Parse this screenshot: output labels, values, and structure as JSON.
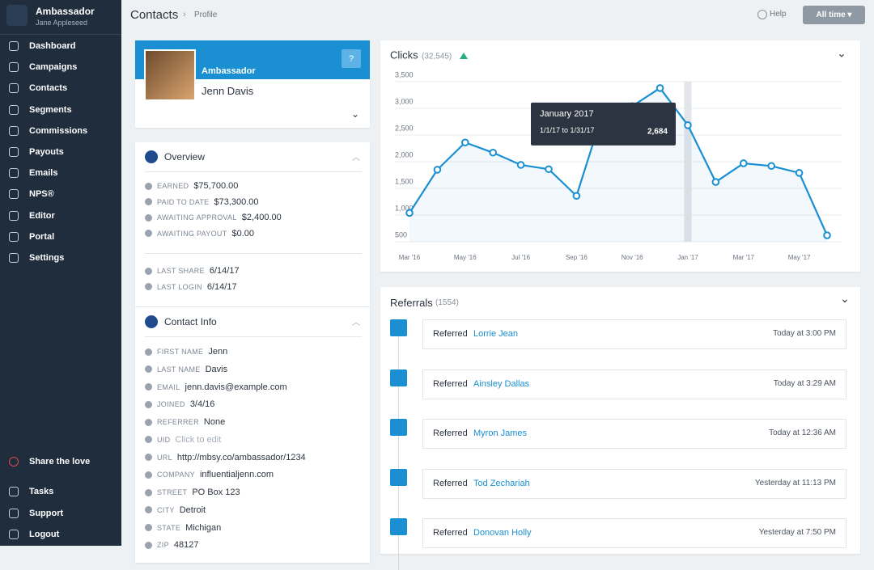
{
  "sidebar": {
    "brand": {
      "title": "Ambassador",
      "subtitle": "Jane Appleseed"
    },
    "nav": [
      "Dashboard",
      "Campaigns",
      "Contacts",
      "Segments",
      "Commissions",
      "Payouts",
      "Emails",
      "NPS®",
      "Editor",
      "Portal",
      "Settings"
    ],
    "bottom": [
      "Share the love",
      "Tasks",
      "Support",
      "Logout"
    ]
  },
  "header": {
    "breadcrumb": [
      "Contacts",
      "Profile"
    ],
    "help": "Help",
    "range": "All time"
  },
  "profile": {
    "badge": "Ambassador",
    "name": "Jenn Davis",
    "help_button": "?"
  },
  "overview": {
    "title": "Overview",
    "stats": [
      {
        "label": "EARNED",
        "value": "$75,700.00"
      },
      {
        "label": "PAID TO DATE",
        "value": "$73,300.00"
      },
      {
        "label": "AWAITING APPROVAL",
        "value": "$2,400.00"
      },
      {
        "label": "AWAITING PAYOUT",
        "value": "$0.00"
      }
    ],
    "activity": [
      {
        "label": "LAST SHARE",
        "value": "6/14/17"
      },
      {
        "label": "LAST LOGIN",
        "value": "6/14/17"
      }
    ]
  },
  "contact": {
    "title": "Contact Info",
    "fields": [
      {
        "label": "FIRST NAME",
        "value": "Jenn"
      },
      {
        "label": "LAST NAME",
        "value": "Davis"
      },
      {
        "label": "EMAIL",
        "value": "jenn.davis@example.com"
      },
      {
        "label": "JOINED",
        "value": "3/4/16"
      },
      {
        "label": "REFERRER",
        "value": "None"
      },
      {
        "label": "UID",
        "value": "Click to edit"
      },
      {
        "label": "URL",
        "value": "http://mbsy.co/ambassador/1234"
      },
      {
        "label": "COMPANY",
        "value": "influentialjenn.com"
      },
      {
        "label": "STREET",
        "value": "PO Box 123"
      },
      {
        "label": "CITY",
        "value": "Detroit"
      },
      {
        "label": "STATE",
        "value": "Michigan"
      },
      {
        "label": "ZIP",
        "value": "48127"
      }
    ]
  },
  "chart_data": {
    "type": "line",
    "title": "Clicks",
    "count": "(32,545)",
    "categories": [
      "Mar '16",
      null,
      "May '16",
      null,
      "Jul '16",
      null,
      "Sep '16",
      null,
      "Nov '16",
      null,
      "Jan '17",
      null,
      "Mar '17",
      null,
      "May '17",
      null
    ],
    "values": [
      1040,
      1850,
      2360,
      2170,
      1940,
      1860,
      1360,
      3010,
      3040,
      3380,
      2684,
      1620,
      1970,
      1920,
      1790,
      620
    ],
    "value_labels": [
      null,
      null,
      null,
      null,
      null,
      null,
      null,
      null,
      null,
      null,
      "2,684",
      null,
      null,
      null,
      null,
      null
    ],
    "tooltip": {
      "title": "January 2017",
      "subtitle": "1/1/17 to 1/31/17"
    },
    "color": "#1a8fd1",
    "ylim": [
      500,
      3500
    ],
    "yticks": [
      500,
      {
        "value": 1000,
        "label": "1,000"
      },
      {
        "value": 1500,
        "label": "1,500"
      },
      {
        "value": 2000,
        "label": "2,000"
      },
      {
        "value": 2500,
        "label": "2,500"
      },
      {
        "value": 3000,
        "label": "3,000"
      },
      {
        "value": 3500,
        "label": "3,500"
      }
    ],
    "grid": true
  },
  "referrals": {
    "title": "Referrals",
    "count": "(1554)",
    "items": [
      {
        "action": "Referred",
        "name": "Lorrie Jean",
        "time": "Today at 3:00 PM"
      },
      {
        "action": "Referred",
        "name": "Ainsley Dallas",
        "time": "Today at 3:29 AM"
      },
      {
        "action": "Referred",
        "name": "Myron James",
        "time": "Today at 12:36 AM"
      },
      {
        "action": "Referred",
        "name": "Tod Zechariah",
        "time": "Yesterday at 11:13 PM"
      },
      {
        "action": "Referred",
        "name": "Donovan Holly",
        "time": "Yesterday at 7:50 PM"
      }
    ]
  }
}
